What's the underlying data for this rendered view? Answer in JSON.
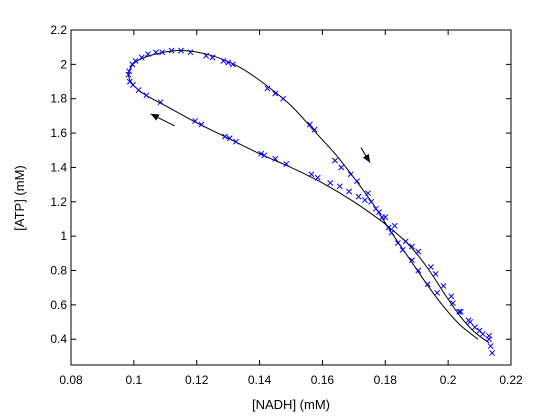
{
  "chart_data": {
    "type": "scatter",
    "title": "",
    "xlabel": "[NADH] (mM)",
    "ylabel": "[ATP] (mM)",
    "xlim": [
      0.08,
      0.22
    ],
    "ylim": [
      0.25,
      2.2
    ],
    "xticks": [
      "0.08",
      "0.1",
      "0.12",
      "0.14",
      "0.16",
      "0.18",
      "0.2",
      "0.22"
    ],
    "yticks": [
      "0.4",
      "0.6",
      "0.8",
      "1",
      "1.2",
      "1.4",
      "1.6",
      "1.8",
      "2",
      "2.2"
    ],
    "grid": false,
    "legend": "none",
    "marker_color": "#0000ff",
    "line_color": "#000000",
    "curve": [
      [
        0.2095,
        0.4
      ],
      [
        0.204,
        0.48
      ],
      [
        0.199,
        0.58
      ],
      [
        0.194,
        0.7
      ],
      [
        0.188,
        0.86
      ],
      [
        0.182,
        1.02
      ],
      [
        0.176,
        1.19
      ],
      [
        0.17,
        1.34
      ],
      [
        0.164,
        1.48
      ],
      [
        0.157,
        1.62
      ],
      [
        0.15,
        1.76
      ],
      [
        0.142,
        1.88
      ],
      [
        0.134,
        1.98
      ],
      [
        0.125,
        2.05
      ],
      [
        0.116,
        2.08
      ],
      [
        0.108,
        2.065
      ],
      [
        0.101,
        2.02
      ],
      [
        0.0985,
        1.96
      ],
      [
        0.099,
        1.9
      ],
      [
        0.103,
        1.83
      ],
      [
        0.111,
        1.75
      ],
      [
        0.12,
        1.66
      ],
      [
        0.13,
        1.57
      ],
      [
        0.14,
        1.48
      ],
      [
        0.15,
        1.4
      ],
      [
        0.16,
        1.31
      ],
      [
        0.17,
        1.2
      ],
      [
        0.18,
        1.07
      ],
      [
        0.188,
        0.94
      ],
      [
        0.194,
        0.8
      ],
      [
        0.199,
        0.66
      ],
      [
        0.204,
        0.53
      ],
      [
        0.2085,
        0.44
      ],
      [
        0.213,
        0.38
      ]
    ],
    "points": [
      [
        0.214,
        0.32
      ],
      [
        0.2135,
        0.36
      ],
      [
        0.213,
        0.4
      ],
      [
        0.211,
        0.43
      ],
      [
        0.2085,
        0.47
      ],
      [
        0.2065,
        0.51
      ],
      [
        0.2035,
        0.56
      ],
      [
        0.2015,
        0.61
      ],
      [
        0.1965,
        0.67
      ],
      [
        0.1935,
        0.72
      ],
      [
        0.1905,
        0.8
      ],
      [
        0.1885,
        0.86
      ],
      [
        0.1855,
        0.92
      ],
      [
        0.184,
        0.96
      ],
      [
        0.182,
        1.02
      ],
      [
        0.181,
        1.05
      ],
      [
        0.179,
        1.11
      ],
      [
        0.177,
        1.16
      ],
      [
        0.1755,
        1.2
      ],
      [
        0.1745,
        1.25
      ],
      [
        0.171,
        1.32
      ],
      [
        0.169,
        1.36
      ],
      [
        0.166,
        1.4
      ],
      [
        0.164,
        1.44
      ],
      [
        0.1575,
        1.62
      ],
      [
        0.156,
        1.65
      ],
      [
        0.1475,
        1.8
      ],
      [
        0.145,
        1.83
      ],
      [
        0.1425,
        1.86
      ],
      [
        0.1315,
        2.0
      ],
      [
        0.13,
        2.01
      ],
      [
        0.1285,
        2.02
      ],
      [
        0.125,
        2.04
      ],
      [
        0.123,
        2.05
      ],
      [
        0.118,
        2.07
      ],
      [
        0.115,
        2.08
      ],
      [
        0.112,
        2.08
      ],
      [
        0.109,
        2.07
      ],
      [
        0.107,
        2.07
      ],
      [
        0.1045,
        2.06
      ],
      [
        0.1025,
        2.04
      ],
      [
        0.1005,
        2.02
      ],
      [
        0.0995,
        2.0
      ],
      [
        0.0985,
        1.96
      ],
      [
        0.0983,
        1.94
      ],
      [
        0.0987,
        1.9
      ],
      [
        0.0997,
        1.88
      ],
      [
        0.1015,
        1.85
      ],
      [
        0.104,
        1.82
      ],
      [
        0.1085,
        1.78
      ],
      [
        0.1195,
        1.67
      ],
      [
        0.1215,
        1.65
      ],
      [
        0.129,
        1.58
      ],
      [
        0.1305,
        1.57
      ],
      [
        0.1325,
        1.55
      ],
      [
        0.1405,
        1.48
      ],
      [
        0.1415,
        1.47
      ],
      [
        0.145,
        1.45
      ],
      [
        0.1485,
        1.42
      ],
      [
        0.1565,
        1.36
      ],
      [
        0.1585,
        1.34
      ],
      [
        0.1625,
        1.31
      ],
      [
        0.1655,
        1.29
      ],
      [
        0.1685,
        1.26
      ],
      [
        0.1715,
        1.23
      ],
      [
        0.1735,
        1.21
      ],
      [
        0.178,
        1.14
      ],
      [
        0.18,
        1.11
      ],
      [
        0.183,
        1.06
      ],
      [
        0.1865,
        0.97
      ],
      [
        0.1885,
        0.94
      ],
      [
        0.1905,
        0.91
      ],
      [
        0.1945,
        0.82
      ],
      [
        0.196,
        0.78
      ],
      [
        0.1985,
        0.71
      ],
      [
        0.201,
        0.65
      ],
      [
        0.204,
        0.56
      ],
      [
        0.207,
        0.5
      ],
      [
        0.21,
        0.45
      ],
      [
        0.213,
        0.42
      ]
    ],
    "arrows": [
      {
        "direction": "down",
        "at": [
          0.1745,
          1.44
        ]
      },
      {
        "direction": "up-left",
        "at": [
          0.106,
          1.7
        ]
      }
    ]
  }
}
